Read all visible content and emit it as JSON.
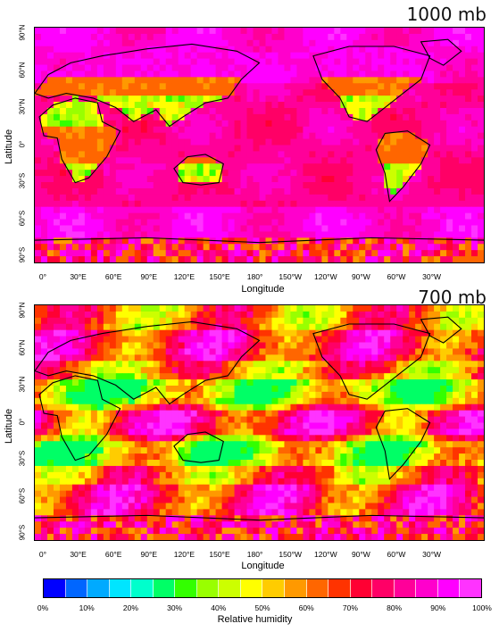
{
  "panels": [
    {
      "id": "p1000",
      "level_label": "1000 mb",
      "profile": "surface"
    },
    {
      "id": "p700",
      "level_label": "700 mb",
      "profile": "midlevel"
    }
  ],
  "axes": {
    "ylabel": "Latitude",
    "xlabel": "Longitude",
    "yticks": [
      "90°N",
      "60°N",
      "30°N",
      "0°",
      "30°S",
      "60°S",
      "90°S"
    ],
    "xticks": [
      "0°",
      "30°E",
      "60°E",
      "90°E",
      "120°E",
      "150°E",
      "180°",
      "150°W",
      "120°W",
      "90°W",
      "60°W",
      "30°W"
    ]
  },
  "colorbar": {
    "label": "Relative humidity",
    "ticks": [
      "0%",
      "10%",
      "20%",
      "30%",
      "40%",
      "50%",
      "60%",
      "70%",
      "80%",
      "90%",
      "100%"
    ],
    "colors": [
      "#0000ff",
      "#0066ff",
      "#00aaff",
      "#00e5ff",
      "#00ffcc",
      "#00ff66",
      "#33ff00",
      "#99ff00",
      "#ccff00",
      "#ffff00",
      "#ffcc00",
      "#ff9900",
      "#ff6600",
      "#ff3300",
      "#ff0033",
      "#ff0066",
      "#ff0099",
      "#ff00cc",
      "#ff00ff",
      "#ff33ff"
    ]
  }
}
